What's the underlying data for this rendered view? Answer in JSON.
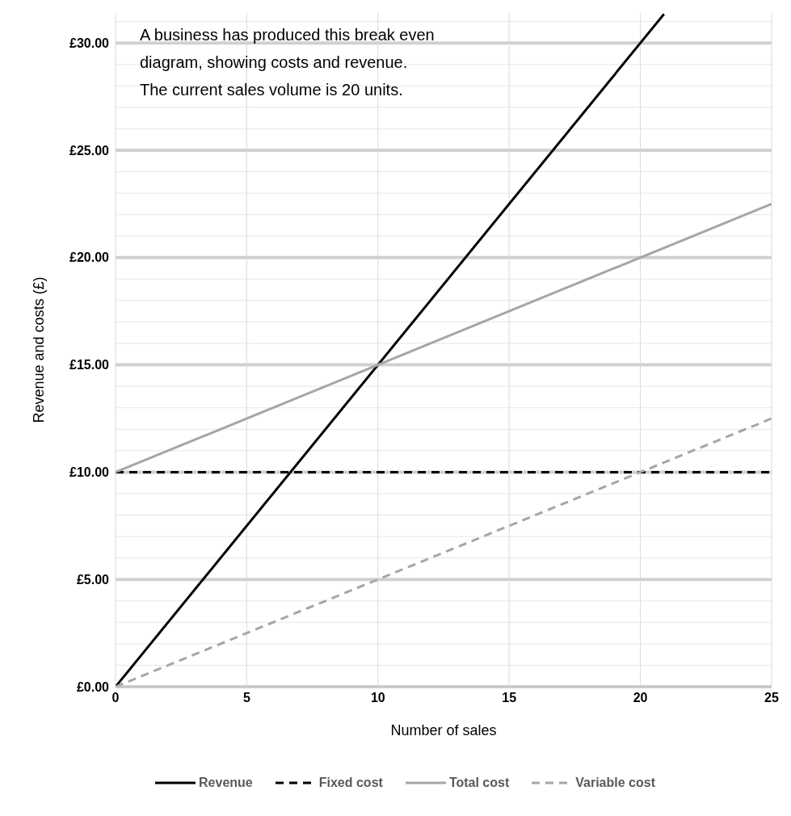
{
  "chart_data": {
    "type": "line",
    "xlabel": "Number of sales",
    "ylabel": "Revenue and costs (£)",
    "annotations": [
      "A business has produced this break even",
      "diagram, showing costs and revenue.",
      "The current sales volume is 20 units."
    ],
    "xlim": [
      0,
      25
    ],
    "xticks": [
      0,
      5,
      10,
      15,
      20,
      25
    ],
    "ylim": [
      0,
      31.4
    ],
    "yticks": [
      {
        "value": 0,
        "label": "£0.00"
      },
      {
        "value": 1,
        "label": null
      },
      {
        "value": 2,
        "label": null
      },
      {
        "value": 3,
        "label": null
      },
      {
        "value": 4,
        "label": null
      },
      {
        "value": 5,
        "label": "£5.00"
      },
      {
        "value": 6,
        "label": null
      },
      {
        "value": 7,
        "label": null
      },
      {
        "value": 8,
        "label": null
      },
      {
        "value": 9,
        "label": null
      },
      {
        "value": 10,
        "label": "£10.00"
      },
      {
        "value": 11,
        "label": null
      },
      {
        "value": 12,
        "label": null
      },
      {
        "value": 13,
        "label": null
      },
      {
        "value": 14,
        "label": null
      },
      {
        "value": 15,
        "label": "£15.00"
      },
      {
        "value": 16,
        "label": null
      },
      {
        "value": 17,
        "label": null
      },
      {
        "value": 18,
        "label": null
      },
      {
        "value": 19,
        "label": null
      },
      {
        "value": 20,
        "label": "£20.00"
      },
      {
        "value": 21,
        "label": null
      },
      {
        "value": 22,
        "label": null
      },
      {
        "value": 23,
        "label": null
      },
      {
        "value": 24,
        "label": null
      },
      {
        "value": 25,
        "label": "£25.00"
      },
      {
        "value": 26,
        "label": null
      },
      {
        "value": 27,
        "label": null
      },
      {
        "value": 28,
        "label": null
      },
      {
        "value": 29,
        "label": null
      },
      {
        "value": 30,
        "label": "£30.00"
      },
      {
        "value": 31,
        "label": null
      }
    ],
    "grid": true,
    "legend": "bottom",
    "marker": "none",
    "series": [
      {
        "name": "Revenue",
        "color": "#000000",
        "line_style": "solid",
        "x": [
          0,
          20.9
        ],
        "values": [
          0,
          31.35
        ]
      },
      {
        "name": "Fixed cost",
        "color": "#000000",
        "line_style": "dashed",
        "x": [
          0,
          25
        ],
        "values": [
          10,
          10
        ]
      },
      {
        "name": "Total cost",
        "color": "#a6a6a6",
        "line_style": "solid",
        "x": [
          0,
          25
        ],
        "values": [
          10,
          22.5
        ]
      },
      {
        "name": "Variable cost",
        "color": "#a6a6a6",
        "line_style": "dashed",
        "x": [
          0,
          25
        ],
        "values": [
          0,
          12.5
        ]
      }
    ]
  }
}
